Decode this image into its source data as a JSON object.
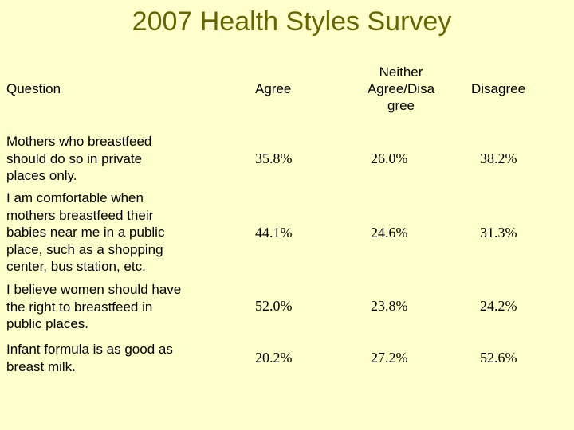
{
  "title": "2007 Health Styles Survey",
  "headers": {
    "question": "Question",
    "agree": "Agree",
    "neither_lines": [
      "Neither",
      "Agree/Disa",
      "gree"
    ],
    "disagree": "Disagree"
  },
  "rows": [
    {
      "question_lines": [
        "Mothers who breastfeed",
        "should do so in private",
        "places only."
      ],
      "agree": "35.8%",
      "neither": "26.0%",
      "disagree": "38.2%"
    },
    {
      "question_lines": [
        "I am comfortable when",
        "mothers breastfeed their",
        "babies near me in a public",
        "place, such as a shopping",
        "center, bus station, etc."
      ],
      "agree": "44.1%",
      "neither": "24.6%",
      "disagree": "31.3%"
    },
    {
      "question_lines": [
        "I believe women should have",
        "the right to breastfeed in",
        "public places."
      ],
      "agree": "52.0%",
      "neither": "23.8%",
      "disagree": "24.2%"
    },
    {
      "question_lines": [
        "Infant formula is as good as",
        "breast milk."
      ],
      "agree": "20.2%",
      "neither": "27.2%",
      "disagree": "52.6%"
    }
  ],
  "colors": {
    "background": "#ffffcc",
    "title": "#666600"
  }
}
